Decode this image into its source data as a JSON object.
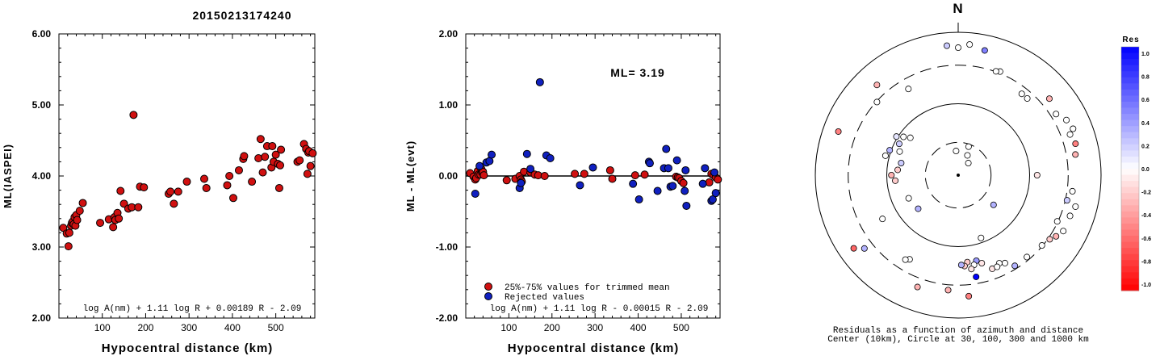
{
  "title": "20150213174240",
  "chart_data": [
    {
      "type": "scatter",
      "xlabel": "Hypocentral distance (km)",
      "ylabel": "ML(IASPEI)",
      "xlim": [
        0,
        590
      ],
      "ylim": [
        2.0,
        6.0
      ],
      "xticks": [
        "100",
        "200",
        "300",
        "400",
        "500"
      ],
      "yticks": [
        "2.00",
        "3.00",
        "4.00",
        "5.00",
        "6.00"
      ],
      "formula": "log A(nm) + 1.11 log R + 0.00189 R - 2.09",
      "series": [
        {
          "color": "#d01010",
          "points": [
            [
              10,
              3.27
            ],
            [
              18,
              3.19
            ],
            [
              22,
              3.01
            ],
            [
              24,
              3.2
            ],
            [
              28,
              3.3
            ],
            [
              30,
              3.34
            ],
            [
              32,
              3.36
            ],
            [
              34,
              3.32
            ],
            [
              36,
              3.42
            ],
            [
              38,
              3.3
            ],
            [
              40,
              3.45
            ],
            [
              42,
              3.38
            ],
            [
              48,
              3.51
            ],
            [
              55,
              3.62
            ],
            [
              95,
              3.34
            ],
            [
              115,
              3.39
            ],
            [
              125,
              3.28
            ],
            [
              128,
              3.42
            ],
            [
              130,
              3.38
            ],
            [
              135,
              3.48
            ],
            [
              138,
              3.4
            ],
            [
              142,
              3.79
            ],
            [
              150,
              3.61
            ],
            [
              160,
              3.54
            ],
            [
              168,
              3.56
            ],
            [
              172,
              4.86
            ],
            [
              183,
              3.56
            ],
            [
              187,
              3.85
            ],
            [
              196,
              3.84
            ],
            [
              253,
              3.75
            ],
            [
              257,
              3.78
            ],
            [
              265,
              3.61
            ],
            [
              275,
              3.78
            ],
            [
              295,
              3.92
            ],
            [
              335,
              3.96
            ],
            [
              340,
              3.83
            ],
            [
              388,
              3.87
            ],
            [
              393,
              4.0
            ],
            [
              402,
              3.69
            ],
            [
              415,
              4.08
            ],
            [
              425,
              4.24
            ],
            [
              427,
              4.28
            ],
            [
              445,
              3.92
            ],
            [
              460,
              4.25
            ],
            [
              465,
              4.52
            ],
            [
              470,
              4.05
            ],
            [
              475,
              4.27
            ],
            [
              480,
              4.42
            ],
            [
              490,
              4.12
            ],
            [
              492,
              4.42
            ],
            [
              495,
              4.2
            ],
            [
              500,
              4.3
            ],
            [
              505,
              4.17
            ],
            [
              508,
              3.83
            ],
            [
              510,
              4.15
            ],
            [
              512,
              4.37
            ],
            [
              550,
              4.2
            ],
            [
              555,
              4.22
            ],
            [
              565,
              4.45
            ],
            [
              570,
              4.38
            ],
            [
              573,
              4.03
            ],
            [
              575,
              4.33
            ],
            [
              577,
              4.35
            ],
            [
              580,
              4.14
            ],
            [
              585,
              4.32
            ]
          ]
        }
      ]
    },
    {
      "type": "scatter",
      "xlabel": "Hypocentral distance (km)",
      "ylabel": "ML - ML(evt)",
      "xlim": [
        0,
        590
      ],
      "ylim": [
        -2.0,
        2.0
      ],
      "xticks": [
        "100",
        "200",
        "300",
        "400",
        "500"
      ],
      "yticks": [
        "-2.00",
        "-1.00",
        "0.00",
        "1.00",
        "2.00"
      ],
      "annotation": "ML= 3.19",
      "formula": "log A(nm) + 1.11 log R - 0.00015 R - 2.09",
      "legend": [
        "25%-75% values for trimmed mean",
        "Rejected values"
      ],
      "series": [
        {
          "name": "25%-75% values for trimmed mean",
          "color": "#d01010",
          "points": [
            [
              10,
              0.04
            ],
            [
              18,
              -0.01
            ],
            [
              22,
              -0.05
            ],
            [
              24,
              -0.03
            ],
            [
              28,
              0.07
            ],
            [
              30,
              0.02
            ],
            [
              34,
              0.02
            ],
            [
              36,
              0.1
            ],
            [
              38,
              0.05
            ],
            [
              40,
              0.06
            ],
            [
              42,
              0.01
            ],
            [
              95,
              -0.06
            ],
            [
              115,
              -0.04
            ],
            [
              125,
              0.0
            ],
            [
              128,
              -0.05
            ],
            [
              130,
              -0.08
            ],
            [
              135,
              0.06
            ],
            [
              150,
              0.05
            ],
            [
              160,
              0.02
            ],
            [
              168,
              0.01
            ],
            [
              183,
              0.0
            ],
            [
              253,
              0.03
            ],
            [
              275,
              0.03
            ],
            [
              335,
              0.08
            ],
            [
              340,
              -0.04
            ],
            [
              393,
              0.01
            ],
            [
              415,
              0.02
            ],
            [
              488,
              -0.01
            ],
            [
              492,
              -0.02
            ],
            [
              495,
              -0.03
            ],
            [
              500,
              -0.07
            ],
            [
              505,
              -0.1
            ],
            [
              565,
              -0.09
            ],
            [
              570,
              0.03
            ],
            [
              575,
              0.01
            ],
            [
              580,
              -0.02
            ],
            [
              585,
              -0.05
            ]
          ]
        },
        {
          "name": "Rejected values",
          "color": "#1020c0",
          "points": [
            [
              22,
              -0.25
            ],
            [
              32,
              0.14
            ],
            [
              48,
              0.19
            ],
            [
              55,
              0.21
            ],
            [
              60,
              0.3
            ],
            [
              125,
              -0.17
            ],
            [
              128,
              -0.1
            ],
            [
              142,
              0.31
            ],
            [
              150,
              0.1
            ],
            [
              172,
              1.32
            ],
            [
              187,
              0.29
            ],
            [
              196,
              0.25
            ],
            [
              265,
              -0.13
            ],
            [
              295,
              0.12
            ],
            [
              388,
              -0.11
            ],
            [
              402,
              -0.33
            ],
            [
              425,
              0.2
            ],
            [
              427,
              0.18
            ],
            [
              445,
              -0.21
            ],
            [
              460,
              0.11
            ],
            [
              465,
              0.38
            ],
            [
              470,
              0.11
            ],
            [
              475,
              -0.15
            ],
            [
              480,
              -0.14
            ],
            [
              490,
              0.22
            ],
            [
              508,
              -0.21
            ],
            [
              510,
              0.08
            ],
            [
              512,
              -0.42
            ],
            [
              550,
              -0.11
            ],
            [
              555,
              0.11
            ],
            [
              570,
              -0.35
            ],
            [
              573,
              -0.33
            ],
            [
              577,
              0.05
            ],
            [
              580,
              -0.24
            ]
          ]
        }
      ]
    },
    {
      "type": "scatter",
      "subtype": "polar residual map",
      "north_label": "N",
      "caption_line1": "Residuals as a function of azimuth and distance",
      "caption_line2": "Center (10km), Circle at 30, 100, 300 and 1000 km",
      "colorbar_title": "Res",
      "colorbar_ticks": [
        "1.0",
        "0.8",
        "0.6",
        "0.4",
        "0.2",
        "0.0",
        "-0.2",
        "-0.4",
        "-0.6",
        "-0.8",
        "-1.0"
      ],
      "stations": [
        {
          "az": -5,
          "dist": 0.2,
          "res": 0.0
        },
        {
          "az": 20,
          "dist": 0.25,
          "res": 0.0
        },
        {
          "az": 40,
          "dist": 0.13,
          "res": 0.0
        },
        {
          "az": 25,
          "dist": 0.18,
          "res": 0.0
        },
        {
          "az": 90,
          "dist": 0.65,
          "res": -0.1
        },
        {
          "az": -85,
          "dist": 0.5,
          "res": -0.2
        },
        {
          "az": -78,
          "dist": 0.48,
          "res": 0.2
        },
        {
          "az": -70,
          "dist": 0.6,
          "res": 0.3
        },
        {
          "az": -62,
          "dist": 0.55,
          "res": 0.2
        },
        {
          "az": -58,
          "dist": 0.6,
          "res": 0.1
        },
        {
          "az": -55,
          "dist": 0.55,
          "res": 0.0
        },
        {
          "az": -68,
          "dist": 0.52,
          "res": 0.0
        },
        {
          "az": -75,
          "dist": 0.62,
          "res": 0.0
        },
        {
          "az": -52,
          "dist": 0.5,
          "res": 0.0
        },
        {
          "az": -90,
          "dist": 0.55,
          "res": -0.3
        },
        {
          "az": -95,
          "dist": 0.52,
          "res": -0.2
        },
        {
          "az": -115,
          "dist": 0.45,
          "res": 0.0
        },
        {
          "az": -130,
          "dist": 0.43,
          "res": 0.3
        },
        {
          "az": 130,
          "dist": 0.38,
          "res": 0.3
        },
        {
          "az": 160,
          "dist": 0.55,
          "res": 0.0
        },
        {
          "az": 165,
          "dist": 0.75,
          "res": -0.1
        },
        {
          "az": 168,
          "dist": 0.72,
          "res": 0.4
        },
        {
          "az": 170,
          "dist": 0.75,
          "res": 0.0
        },
        {
          "az": 172,
          "dist": 0.78,
          "res": -0.1
        },
        {
          "az": 174,
          "dist": 0.72,
          "res": -0.2
        },
        {
          "az": 176,
          "dist": 0.75,
          "res": -0.2
        },
        {
          "az": 178,
          "dist": 0.74,
          "res": 0.3
        },
        {
          "az": 160,
          "dist": 0.82,
          "res": -0.1
        },
        {
          "az": 155,
          "dist": 0.8,
          "res": 0.0
        },
        {
          "az": 157,
          "dist": 0.82,
          "res": 0.0
        },
        {
          "az": 152,
          "dist": 0.82,
          "res": 0.0
        },
        {
          "az": 170,
          "dist": 0.85,
          "res": 1.0
        },
        {
          "az": 148,
          "dist": 0.88,
          "res": 0.3
        },
        {
          "az": 140,
          "dist": 0.88,
          "res": 0.0
        },
        {
          "az": 130,
          "dist": 0.9,
          "res": 0.0
        },
        {
          "az": 125,
          "dist": 0.92,
          "res": -0.2
        },
        {
          "az": 122,
          "dist": 0.95,
          "res": -0.3
        },
        {
          "az": 118,
          "dist": 0.98,
          "res": 0.0
        },
        {
          "az": 115,
          "dist": 0.9,
          "res": 0.0
        },
        {
          "az": 110,
          "dist": 0.98,
          "res": 0.0
        },
        {
          "az": 105,
          "dist": 1.0,
          "res": 0.0
        },
        {
          "az": 103,
          "dist": 0.92,
          "res": 0.2
        },
        {
          "az": 98,
          "dist": 0.95,
          "res": 0.0
        },
        {
          "az": 80,
          "dist": 0.98,
          "res": -0.3
        },
        {
          "az": 75,
          "dist": 1.0,
          "res": -0.5
        },
        {
          "az": 70,
          "dist": 0.98,
          "res": 0.0
        },
        {
          "az": 68,
          "dist": 1.02,
          "res": 0.0
        },
        {
          "az": 63,
          "dist": 1.0,
          "res": 0.0
        },
        {
          "az": 58,
          "dist": 0.95,
          "res": 0.0
        },
        {
          "az": 50,
          "dist": 0.98,
          "res": -0.3
        },
        {
          "az": 42,
          "dist": 0.85,
          "res": 0.0
        },
        {
          "az": 38,
          "dist": 0.85,
          "res": 0.0
        },
        {
          "az": 22,
          "dist": 0.92,
          "res": 0.0
        },
        {
          "az": 20,
          "dist": 0.91,
          "res": 0.0
        },
        {
          "az": 12,
          "dist": 1.05,
          "res": 0.5
        },
        {
          "az": 5,
          "dist": 1.08,
          "res": 0.0
        },
        {
          "az": 0,
          "dist": 1.05,
          "res": 0.0
        },
        {
          "az": -5,
          "dist": 1.07,
          "res": 0.2
        },
        {
          "az": -30,
          "dist": 0.82,
          "res": 0.0
        },
        {
          "az": -42,
          "dist": 1.0,
          "res": -0.3
        },
        {
          "az": -48,
          "dist": 0.9,
          "res": 0.0
        },
        {
          "az": -70,
          "dist": 1.05,
          "res": -0.5
        },
        {
          "az": -120,
          "dist": 0.72,
          "res": 0.0
        },
        {
          "az": -128,
          "dist": 0.98,
          "res": 0.3
        },
        {
          "az": -125,
          "dist": 1.05,
          "res": -0.6
        },
        {
          "az": -150,
          "dist": 0.8,
          "res": 0.0
        },
        {
          "az": -148,
          "dist": 0.82,
          "res": 0.0
        },
        {
          "az": -160,
          "dist": 0.98,
          "res": -0.3
        },
        {
          "az": -175,
          "dist": 0.95,
          "res": -0.3
        },
        {
          "az": 175,
          "dist": 1.0,
          "res": -0.5
        }
      ]
    }
  ]
}
